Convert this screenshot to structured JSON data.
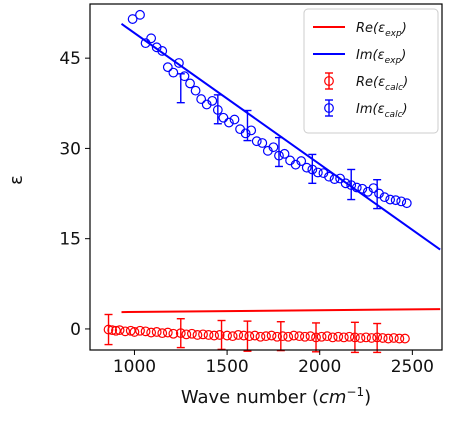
{
  "chart_data": {
    "type": "scatter",
    "xlabel": "Wave number (cm⁻¹)",
    "xlabel_parts": {
      "main": "Wave number (",
      "unit": "cm",
      "sup": "−1",
      "close": ")"
    },
    "ylabel": "ε",
    "xlim": [
      760,
      2660
    ],
    "ylim": [
      -3.5,
      54
    ],
    "x_ticks": [
      1000,
      1500,
      2000,
      2500
    ],
    "y_ticks": [
      0,
      15,
      30,
      45
    ],
    "grid": false,
    "legend_position": "top-right",
    "colors": {
      "re": "#ff0000",
      "im": "#0000ff"
    },
    "series": [
      {
        "name": "Re(εexp)",
        "legend": {
          "pre": "Re(",
          "sym": "ε",
          "sub": "exp",
          "post": ")"
        },
        "kind": "line",
        "color": "#ff0000",
        "x": [
          930,
          2650
        ],
        "y": [
          2.8,
          3.3
        ]
      },
      {
        "name": "Im(εexp)",
        "legend": {
          "pre": "Im(",
          "sym": "ε",
          "sub": "exp",
          "post": ")"
        },
        "kind": "line",
        "color": "#0000ff",
        "x": [
          930,
          2650
        ],
        "y": [
          50.7,
          13.2
        ]
      },
      {
        "name": "Re(εcalc)",
        "legend": {
          "pre": "Re(",
          "sym": "ε",
          "sub": "calc",
          "post": ")"
        },
        "kind": "points",
        "color": "#ff0000",
        "x": [
          860,
          880,
          900,
          920,
          950,
          980,
          1000,
          1030,
          1060,
          1090,
          1120,
          1150,
          1180,
          1210,
          1250,
          1280,
          1310,
          1340,
          1370,
          1400,
          1430,
          1460,
          1500,
          1530,
          1560,
          1590,
          1620,
          1650,
          1680,
          1710,
          1740,
          1770,
          1800,
          1830,
          1860,
          1890,
          1920,
          1950,
          1980,
          2010,
          2040,
          2070,
          2100,
          2130,
          2160,
          2190,
          2220,
          2250,
          2280,
          2310,
          2340,
          2370,
          2400,
          2430,
          2460
        ],
        "y": [
          -0.1,
          -0.2,
          -0.3,
          -0.2,
          -0.4,
          -0.3,
          -0.5,
          -0.3,
          -0.4,
          -0.6,
          -0.5,
          -0.7,
          -0.6,
          -0.8,
          -0.7,
          -0.9,
          -0.8,
          -1.0,
          -0.9,
          -1.0,
          -1.1,
          -1.0,
          -1.1,
          -1.2,
          -1.0,
          -1.1,
          -1.2,
          -1.1,
          -1.3,
          -1.2,
          -1.1,
          -1.3,
          -1.2,
          -1.3,
          -1.1,
          -1.2,
          -1.3,
          -1.2,
          -1.4,
          -1.3,
          -1.2,
          -1.4,
          -1.3,
          -1.4,
          -1.3,
          -1.4,
          -1.5,
          -1.4,
          -1.5,
          -1.4,
          -1.5,
          -1.6,
          -1.5,
          -1.6,
          -1.6
        ],
        "error_bars": [
          {
            "x": 860,
            "y": -0.1,
            "err": 2.5
          },
          {
            "x": 1250,
            "y": -0.7,
            "err": 2.4
          },
          {
            "x": 1470,
            "y": -1.0,
            "err": 2.4
          },
          {
            "x": 1610,
            "y": -1.2,
            "err": 2.5
          },
          {
            "x": 1790,
            "y": -1.2,
            "err": 2.4
          },
          {
            "x": 1980,
            "y": -1.4,
            "err": 2.4
          },
          {
            "x": 2190,
            "y": -1.4,
            "err": 2.5
          },
          {
            "x": 2310,
            "y": -1.5,
            "err": 2.4
          }
        ]
      },
      {
        "name": "Im(εcalc)",
        "legend": {
          "pre": "Im(",
          "sym": "ε",
          "sub": "calc",
          "post": ")"
        },
        "kind": "points",
        "color": "#0000ff",
        "x": [
          990,
          1030,
          1060,
          1090,
          1120,
          1150,
          1180,
          1210,
          1240,
          1270,
          1300,
          1330,
          1360,
          1390,
          1420,
          1450,
          1480,
          1510,
          1540,
          1570,
          1600,
          1630,
          1660,
          1690,
          1720,
          1750,
          1780,
          1810,
          1840,
          1870,
          1900,
          1930,
          1960,
          1990,
          2020,
          2050,
          2080,
          2110,
          2140,
          2170,
          2200,
          2230,
          2260,
          2290,
          2320,
          2350,
          2380,
          2410,
          2440,
          2470
        ],
        "y": [
          51.5,
          52.2,
          47.5,
          48.3,
          46.8,
          46.2,
          43.5,
          42.6,
          44.2,
          42.0,
          40.8,
          39.6,
          38.2,
          37.3,
          37.9,
          36.4,
          35.1,
          34.3,
          34.8,
          33.2,
          32.5,
          33.0,
          31.2,
          30.9,
          29.6,
          30.2,
          28.8,
          29.1,
          28.0,
          27.3,
          27.9,
          26.8,
          26.5,
          26.0,
          25.9,
          25.3,
          24.9,
          25.0,
          24.2,
          23.9,
          23.5,
          23.3,
          22.8,
          23.4,
          22.5,
          21.9,
          21.5,
          21.4,
          21.2,
          20.9
        ],
        "error_bars": [
          {
            "x": 1250,
            "y": 40.0,
            "err": 2.4
          },
          {
            "x": 1450,
            "y": 36.5,
            "err": 2.4
          },
          {
            "x": 1610,
            "y": 33.8,
            "err": 2.5
          },
          {
            "x": 1780,
            "y": 29.4,
            "err": 2.4
          },
          {
            "x": 1960,
            "y": 26.6,
            "err": 2.4
          },
          {
            "x": 2170,
            "y": 24.0,
            "err": 2.5
          },
          {
            "x": 2310,
            "y": 22.4,
            "err": 2.4
          }
        ]
      }
    ]
  }
}
